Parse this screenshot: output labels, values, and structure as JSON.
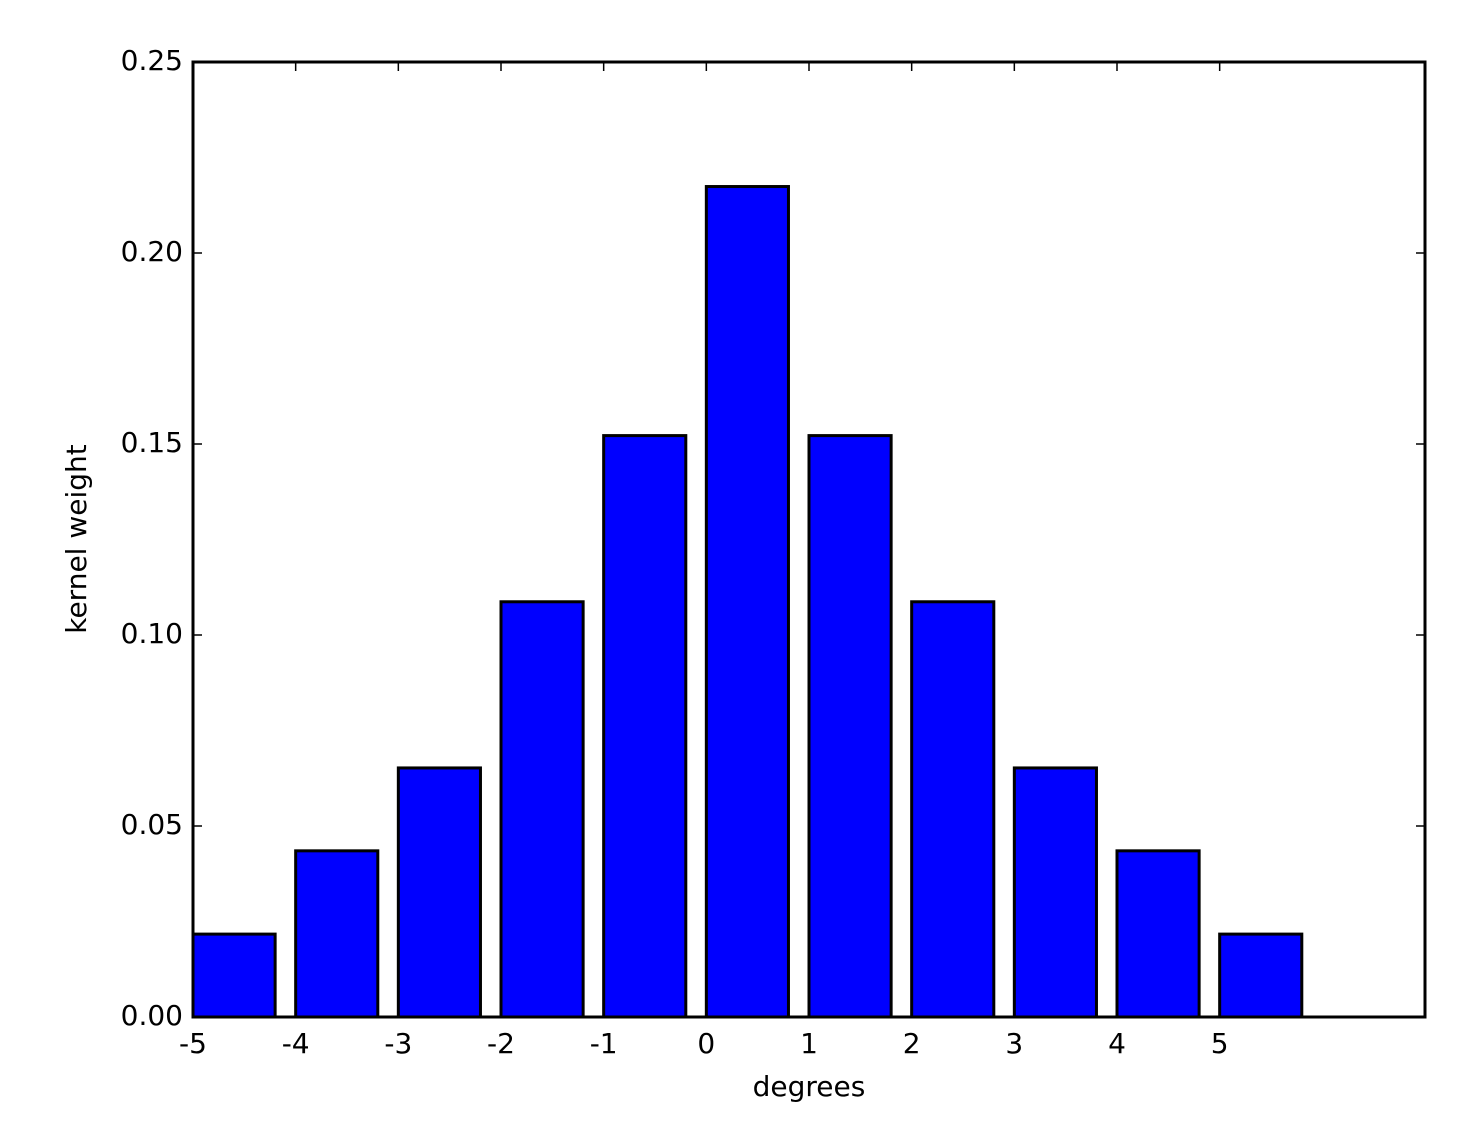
{
  "chart_data": {
    "type": "bar",
    "x_label": "degrees",
    "y_label": "kernel weight",
    "x": [
      -5,
      -4,
      -3,
      -2,
      -1,
      0,
      1,
      2,
      3,
      4,
      5
    ],
    "values": [
      0.0217,
      0.0435,
      0.0652,
      0.1087,
      0.1522,
      0.2174,
      0.1522,
      0.1087,
      0.0652,
      0.0435,
      0.0217
    ],
    "color": "#0000ff",
    "xlim": [
      -5,
      7
    ],
    "xticks": [
      -5,
      -4,
      -3,
      -2,
      -1,
      0,
      1,
      2,
      3,
      4,
      5
    ],
    "ylim": [
      0,
      0.25
    ],
    "yticks": [
      {
        "value": 0,
        "label": "0.00"
      },
      {
        "value": 0.05,
        "label": "0.05"
      },
      {
        "value": 0.1,
        "label": "0.10"
      },
      {
        "value": 0.15,
        "label": "0.15"
      },
      {
        "value": 0.2,
        "label": "0.20"
      },
      {
        "value": 0.25,
        "label": "0.25"
      }
    ],
    "grid": false
  }
}
